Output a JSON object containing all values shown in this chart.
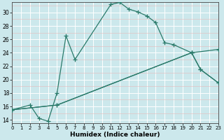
{
  "xlabel": "Humidex (Indice chaleur)",
  "bg_color": "#cce8ec",
  "grid_major_color": "#ffffff",
  "grid_minor_color": "#e8b8b8",
  "line_color": "#2a7a6a",
  "xlim": [
    0,
    23
  ],
  "ylim": [
    13.5,
    31.5
  ],
  "xticks": [
    0,
    1,
    2,
    3,
    4,
    5,
    6,
    7,
    8,
    9,
    10,
    11,
    12,
    13,
    14,
    15,
    16,
    17,
    18,
    19,
    20,
    21,
    22,
    23
  ],
  "yticks": [
    14,
    16,
    18,
    20,
    22,
    24,
    26,
    28,
    30
  ],
  "line1_x": [
    0,
    2,
    3,
    4,
    5,
    6,
    7,
    11,
    12,
    13,
    14,
    15,
    16,
    17,
    18,
    20,
    21,
    23
  ],
  "line1_y": [
    15.5,
    16.2,
    14.2,
    13.8,
    18.0,
    26.5,
    23.0,
    31.2,
    31.5,
    30.5,
    30.1,
    29.5,
    28.5,
    25.5,
    25.2,
    24.0,
    21.5,
    19.5
  ],
  "line2_x": [
    0,
    5,
    20,
    21,
    23
  ],
  "line2_y": [
    15.5,
    16.2,
    24.0,
    21.5,
    19.5
  ],
  "line3_x": [
    0,
    5,
    20,
    23
  ],
  "line3_y": [
    15.5,
    16.2,
    24.0,
    24.5
  ]
}
